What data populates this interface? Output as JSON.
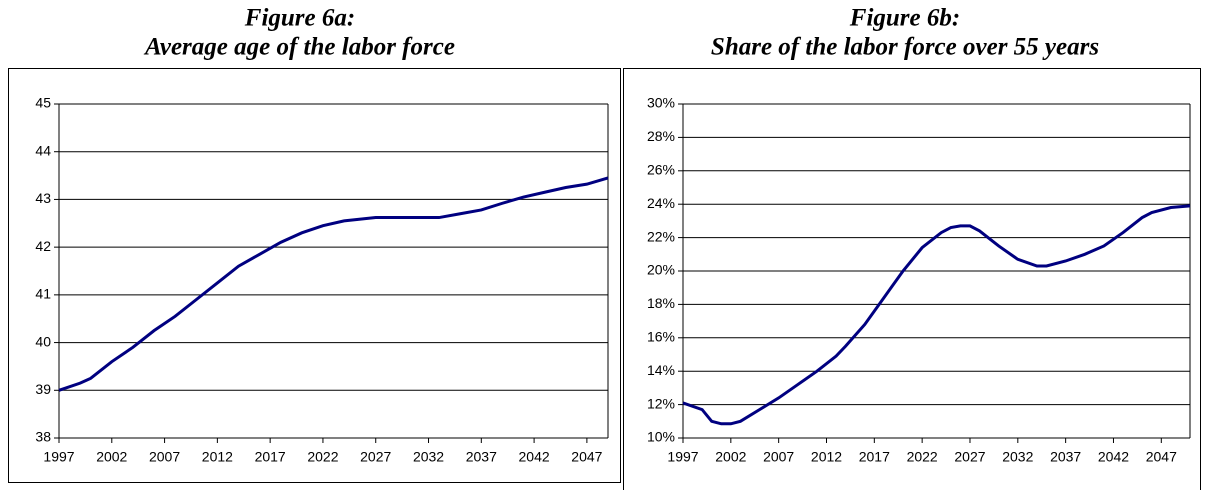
{
  "chart_data": [
    {
      "type": "line",
      "title": "Figure 6a:",
      "subtitle": "Average age of the labor force",
      "x": [
        1997,
        1999,
        2000,
        2002,
        2004,
        2006,
        2008,
        2010,
        2012,
        2014,
        2016,
        2018,
        2020,
        2022,
        2024,
        2027,
        2030,
        2033,
        2035,
        2037,
        2039,
        2041,
        2043,
        2045,
        2047,
        2049
      ],
      "series": [
        {
          "color": "#000080",
          "values": [
            39.0,
            39.15,
            39.25,
            39.6,
            39.9,
            40.25,
            40.55,
            40.9,
            41.25,
            41.6,
            41.85,
            42.1,
            42.3,
            42.45,
            42.55,
            42.62,
            42.62,
            42.62,
            42.7,
            42.78,
            42.92,
            43.05,
            43.15,
            43.25,
            43.32,
            43.45
          ]
        }
      ],
      "xlim": [
        1997,
        2049
      ],
      "xticks": [
        1997,
        2002,
        2007,
        2012,
        2017,
        2022,
        2027,
        2032,
        2037,
        2042,
        2047
      ],
      "ylim": [
        38,
        45
      ],
      "yticks": [
        38,
        39,
        40,
        41,
        42,
        43,
        44,
        45
      ],
      "grid": true
    },
    {
      "type": "line",
      "title": "Figure 6b:",
      "subtitle": "Share of the labor force over 55 years",
      "x": [
        1997,
        1999,
        2000,
        2001,
        2002,
        2003,
        2005,
        2007,
        2009,
        2011,
        2013,
        2014,
        2016,
        2018,
        2020,
        2022,
        2024,
        2025,
        2026,
        2027,
        2028,
        2030,
        2032,
        2034,
        2035,
        2037,
        2039,
        2041,
        2043,
        2045,
        2046,
        2048,
        2050
      ],
      "series": [
        {
          "color": "#000080",
          "values": [
            12.1,
            11.7,
            11.0,
            10.85,
            10.85,
            11.0,
            11.7,
            12.4,
            13.2,
            14.0,
            14.9,
            15.5,
            16.8,
            18.4,
            20.0,
            21.4,
            22.3,
            22.6,
            22.7,
            22.7,
            22.4,
            21.5,
            20.7,
            20.3,
            20.3,
            20.6,
            21.0,
            21.5,
            22.3,
            23.2,
            23.5,
            23.8,
            23.9
          ]
        }
      ],
      "xlim": [
        1997,
        2050
      ],
      "xticks": [
        1997,
        2002,
        2007,
        2012,
        2017,
        2022,
        2027,
        2032,
        2037,
        2042,
        2047
      ],
      "ylim": [
        10,
        30
      ],
      "yticks": [
        {
          "value": 10,
          "label": "10%"
        },
        {
          "value": 12,
          "label": "12%"
        },
        {
          "value": 14,
          "label": "14%"
        },
        {
          "value": 16,
          "label": "16%"
        },
        {
          "value": 18,
          "label": "18%"
        },
        {
          "value": 20,
          "label": "20%"
        },
        {
          "value": 22,
          "label": "22%"
        },
        {
          "value": 24,
          "label": "24%"
        },
        {
          "value": 26,
          "label": "26%"
        },
        {
          "value": 28,
          "label": "28%"
        },
        {
          "value": 30,
          "label": "30%"
        }
      ],
      "grid": true
    }
  ]
}
